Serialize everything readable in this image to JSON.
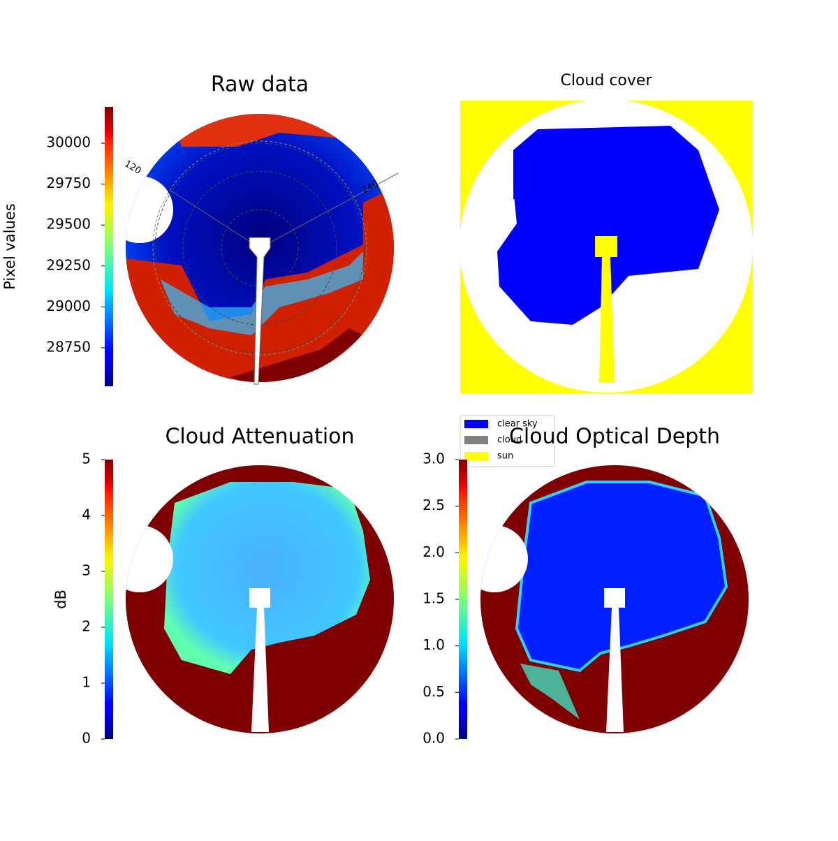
{
  "chart_data": [
    {
      "type": "image",
      "title": "Raw data",
      "colormap": "jet",
      "annotations": [
        "120",
        "240"
      ],
      "colorbar": {
        "label": "Pixel values",
        "lim": [
          28515,
          30222
        ],
        "ticks": [
          28750,
          29000,
          29250,
          29500,
          29750,
          30000
        ]
      }
    },
    {
      "type": "image",
      "title": "Cloud cover",
      "legend": [
        {
          "name": "clear sky",
          "color": "#0000ff"
        },
        {
          "name": "cloud",
          "color": "#808080"
        },
        {
          "name": "sun",
          "color": "#ffff00"
        }
      ]
    },
    {
      "type": "image",
      "title": "Cloud Attenuation",
      "colormap": "jet",
      "colorbar": {
        "label": "dB",
        "lim": [
          0,
          5
        ],
        "ticks": [
          0,
          1,
          2,
          3,
          4,
          5
        ]
      }
    },
    {
      "type": "image",
      "title": "Cloud Optical Depth",
      "colormap": "jet",
      "colorbar": {
        "lim": [
          0,
          3
        ],
        "ticks": [
          {
            "value": 0,
            "label": "0.0"
          },
          0.5,
          {
            "value": 1,
            "label": "1.0"
          },
          1.5,
          {
            "value": 2,
            "label": "2.0"
          },
          2.5,
          {
            "value": 3,
            "label": "3.0"
          }
        ]
      }
    }
  ]
}
